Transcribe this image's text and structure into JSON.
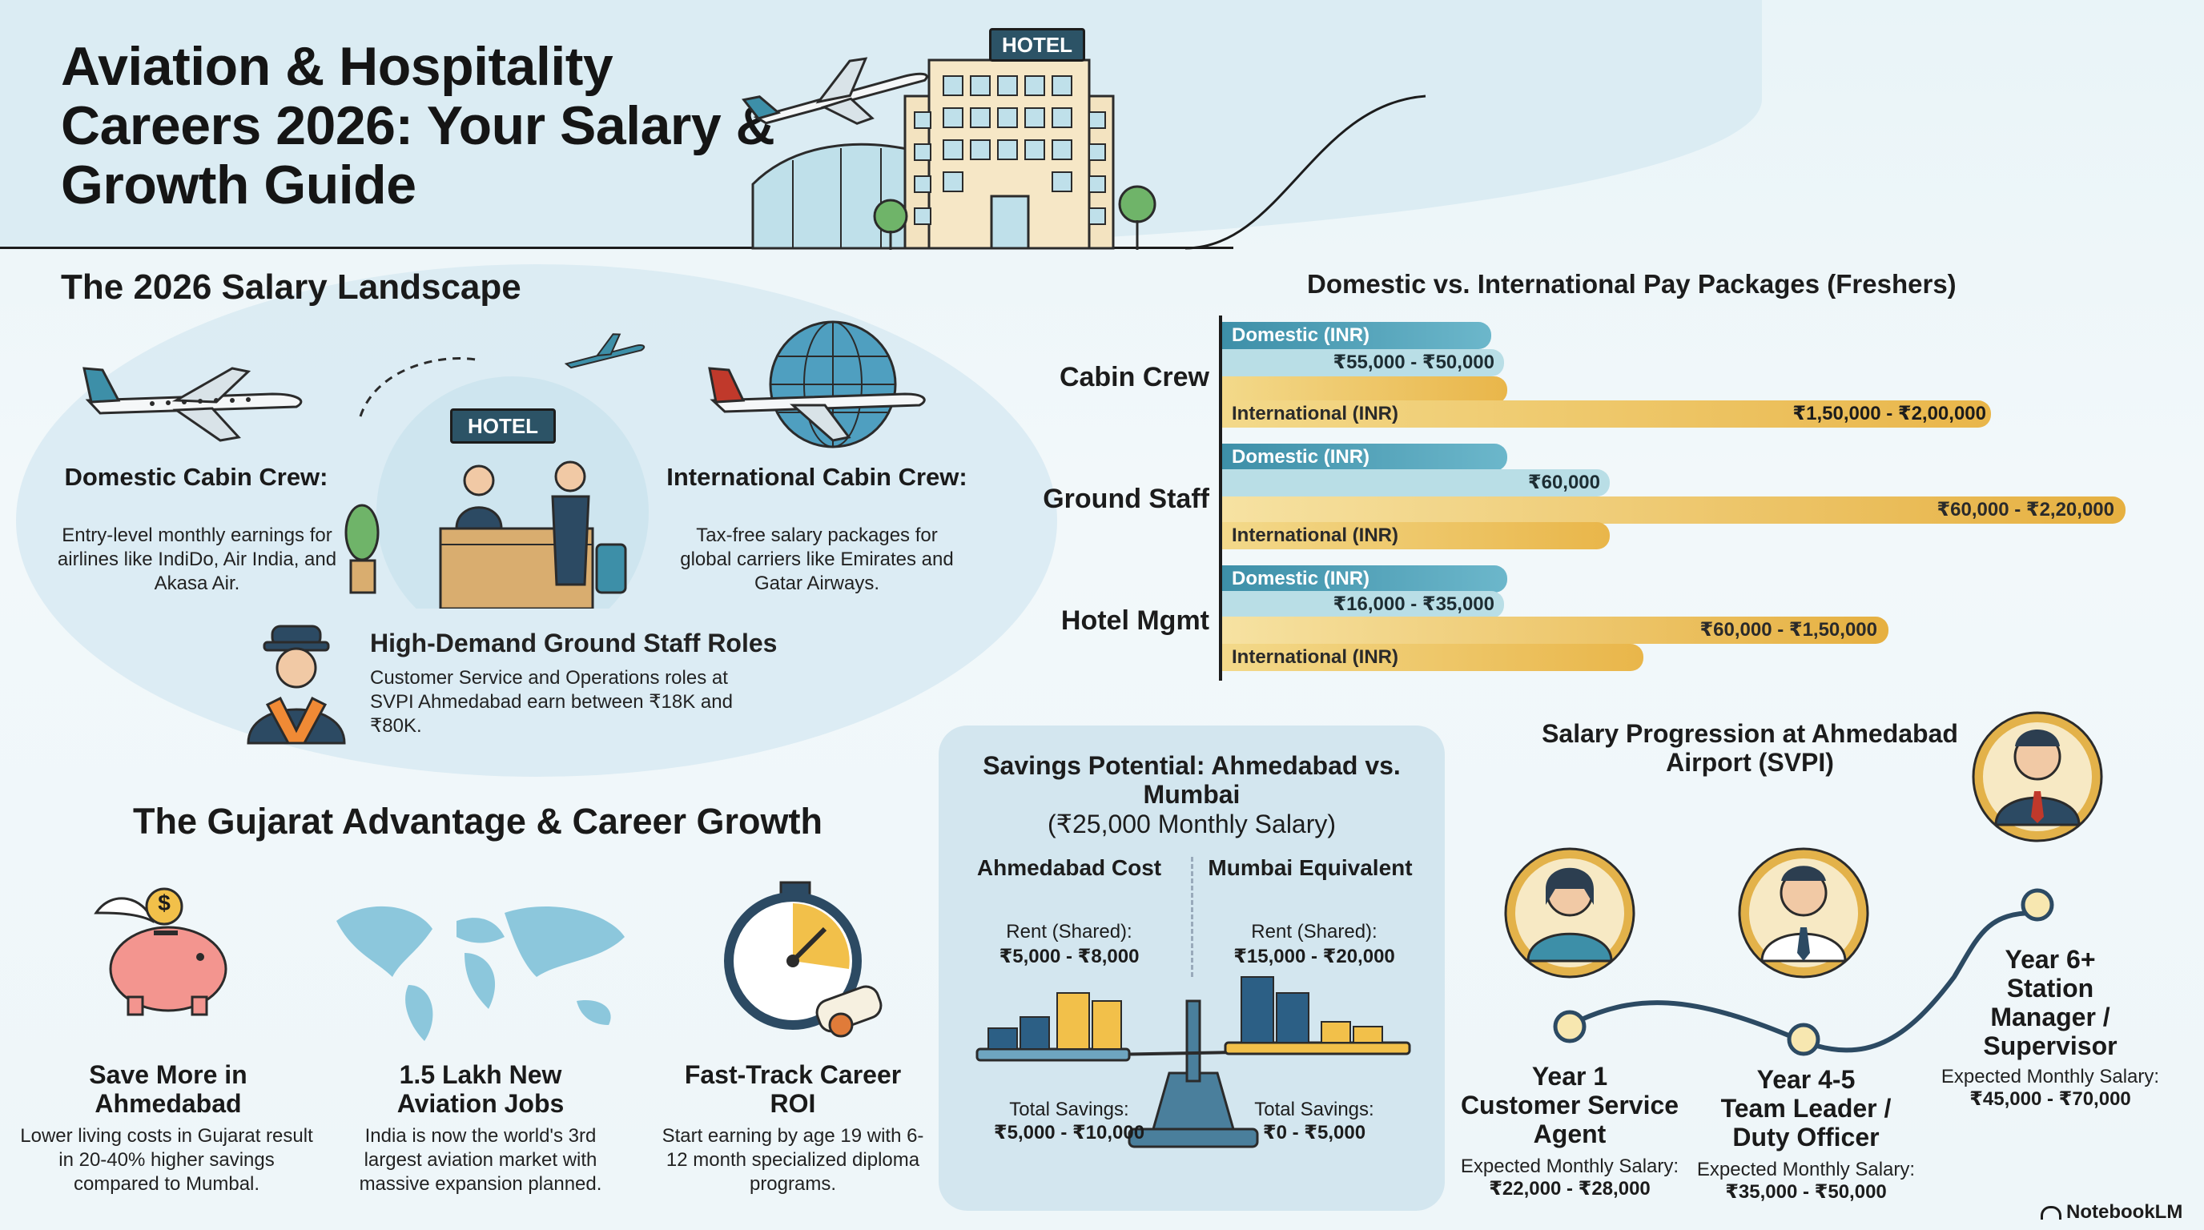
{
  "header": {
    "title": "Aviation & Hospitality Careers 2026: Your Salary & Growth Guide",
    "hotel_sign": "HOTEL"
  },
  "landscape": {
    "heading": "The 2026 Salary Landscape",
    "hotel_sign": "HOTEL",
    "domestic": {
      "title": "Domestic Cabin Crew:",
      "text": "Entry-level monthly earnings for airlines like IndiDo, Air India, and Akasa Air."
    },
    "international": {
      "title": "International Cabin Crew:",
      "text": "Tax-free salary packages for global carriers like Emirates and Gatar Airways."
    },
    "ground": {
      "title": "High-Demand Ground Staff Roles",
      "text": "Customer Service and Operations roles at SVPI Ahmedabad earn between ₹18K and ₹80K."
    }
  },
  "pay_chart": {
    "title": "Domestic vs. International Pay Packages (Freshers)",
    "domestic_label": "Domestic (INR)",
    "international_label": "International (INR)",
    "rows": [
      {
        "name": "Cabin Crew",
        "domestic": "₹55,000 - ₹50,000",
        "international": "₹1,50,000 - ₹2,00,000"
      },
      {
        "name": "Ground Staff",
        "domestic": "₹60,000",
        "international": "₹60,000 - ₹2,20,000"
      },
      {
        "name": "Hotel Mgmt",
        "domestic": "₹16,000 - ₹35,000",
        "international": "₹60,000 - ₹1,50,000"
      }
    ]
  },
  "gujarat": {
    "heading": "The Gujarat Advantage & Career Growth",
    "coin_symbol": "$",
    "items": [
      {
        "title": "Save More in Ahmedabad",
        "text": "Lower living costs in Gujarat result in 20-40% higher savings compared to Mumbal."
      },
      {
        "title": "1.5 Lakh New Aviation Jobs",
        "text": "India is now the world's 3rd largest aviation market with massive expansion planned."
      },
      {
        "title": "Fast-Track Career ROI",
        "text": "Start earning by age 19 with 6-12 month specialized diploma programs."
      }
    ]
  },
  "savings": {
    "title": "Savings Potential: Ahmedabad vs. Mumbai",
    "subtitle": "(₹25,000 Monthly Salary)",
    "left": {
      "heading": "Ahmedabad Cost",
      "rent_label": "Rent (Shared):",
      "rent": "₹5,000 - ₹8,000",
      "savings_label": "Total Savings:",
      "savings": "₹5,000 - ₹10,000"
    },
    "right": {
      "heading": "Mumbai Equivalent",
      "rent_label": "Rent (Shared):",
      "rent": "₹15,000 - ₹20,000",
      "savings_label": "Total Savings:",
      "savings": "₹0 - ₹5,000"
    }
  },
  "progression": {
    "title": "Salary Progression at Ahmedabad Airport (SVPI)",
    "salary_label": "Expected Monthly Salary:",
    "steps": [
      {
        "year": "Year 1",
        "role": "Customer Service Agent",
        "salary": "₹22,000 - ₹28,000"
      },
      {
        "year": "Year 4-5",
        "role": "Team Leader / Duty Officer",
        "salary": "₹35,000 - ₹50,000"
      },
      {
        "year": "Year 6+",
        "role": "Station Manager / Supervisor",
        "salary": "₹45,000 - ₹70,000"
      }
    ]
  },
  "footer": {
    "brand": "NotebookLM"
  },
  "colors": {
    "teal": "#3d8fa8",
    "gold": "#e9b64a",
    "ink": "#1c1c1c"
  }
}
